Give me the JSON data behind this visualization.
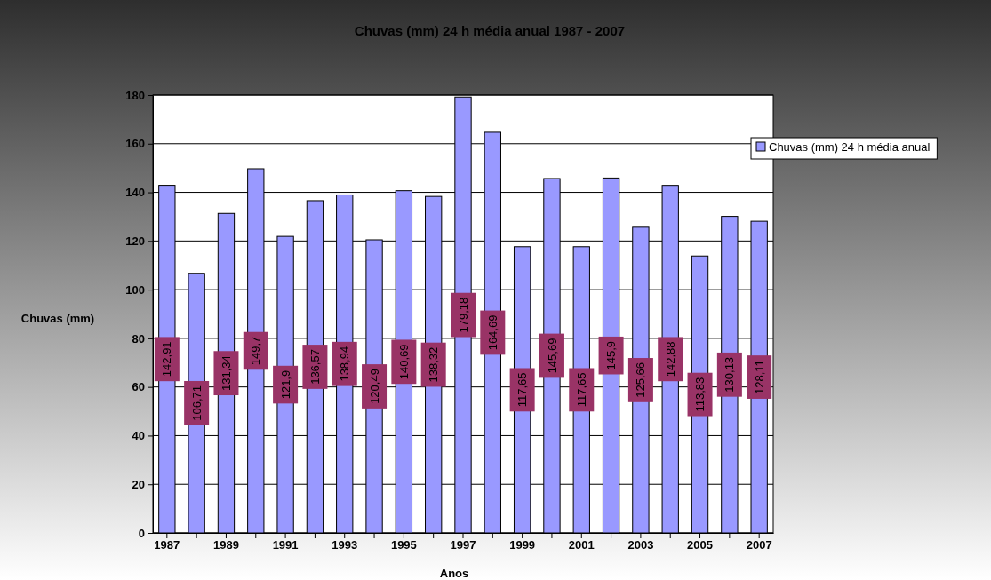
{
  "chart_data": {
    "type": "bar",
    "title": "Chuvas (mm) 24 h média anual 1987 - 2007",
    "xlabel": "Anos",
    "ylabel": "Chuvas (mm)",
    "categories": [
      "1987",
      null,
      "1989",
      null,
      "1991",
      null,
      "1993",
      null,
      "1995",
      null,
      "1997",
      null,
      "1999",
      null,
      "2001",
      null,
      "2003",
      null,
      "2005",
      null,
      "2007"
    ],
    "series": [
      {
        "name": "Chuvas (mm) 24 h média anual",
        "color": "#9999ff",
        "values": [
          142.91,
          106.71,
          131.34,
          149.7,
          121.9,
          136.57,
          138.94,
          120.49,
          140.69,
          138.32,
          179.18,
          164.69,
          117.65,
          145.69,
          117.65,
          145.9,
          125.66,
          142.88,
          113.83,
          130.13,
          128.11
        ],
        "value_labels": [
          "142,91",
          "106,71",
          "131,34",
          "149,7",
          "121,9",
          "136,57",
          "138,94",
          "120,49",
          "140,69",
          "138,32",
          "179,18",
          "164,69",
          "117,65",
          "145,69",
          "117,65",
          "145,9",
          "125,66",
          "142,88",
          "113,83",
          "130,13",
          "128,11"
        ]
      }
    ],
    "ylim": [
      0,
      180
    ],
    "yticks": [
      0,
      20,
      40,
      60,
      80,
      100,
      120,
      140,
      160,
      180
    ],
    "grid": "y",
    "legend": "right"
  }
}
